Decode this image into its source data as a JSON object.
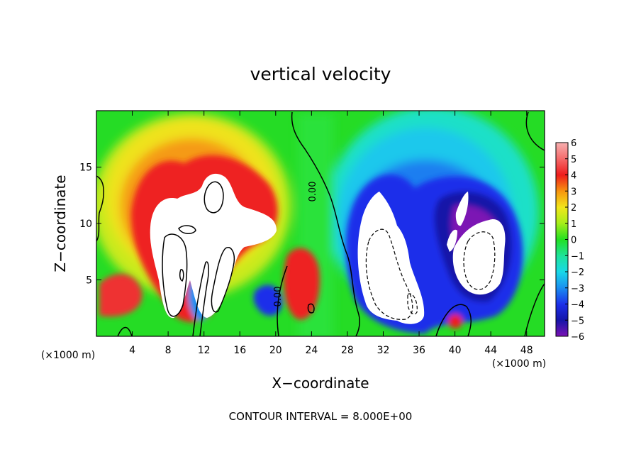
{
  "chart_data": {
    "type": "heatmap",
    "title": "vertical velocity",
    "xlabel": "X−coordinate",
    "ylabel": "Z−coordinate",
    "x_unit_left": "(×1000 m)",
    "x_unit_right": "(×1000 m)",
    "xlim": [
      0,
      50
    ],
    "ylim": [
      0,
      20
    ],
    "x_ticks": [
      4,
      8,
      12,
      16,
      20,
      24,
      28,
      32,
      36,
      40,
      44,
      48
    ],
    "x_tick_labels": [
      "4",
      "8",
      "12",
      "16",
      "20",
      "24",
      "28",
      "32",
      "36",
      "40",
      "44",
      "48"
    ],
    "y_ticks": [
      5,
      10,
      15
    ],
    "y_tick_labels": [
      "5",
      "10",
      "15"
    ],
    "colorbar": {
      "values": [
        6,
        5,
        4,
        3,
        2,
        1,
        0,
        -1,
        -2,
        -3,
        -4,
        -5,
        -6
      ],
      "labels": [
        "6",
        "5",
        "4",
        "3",
        "2",
        "1",
        "0",
        "−1",
        "−2",
        "−3",
        "−4",
        "−5",
        "−6"
      ],
      "range": [
        -6,
        6
      ]
    },
    "contour_labels": [
      "0.00",
      "0.00"
    ],
    "contour_interval_text": "CONTOUR INTERVAL = 8.000E+00",
    "features": [
      {
        "kind": "updraft",
        "x": 9,
        "z": 9,
        "sign": "+"
      },
      {
        "kind": "updraft",
        "x": 14,
        "z": 12,
        "sign": "+"
      },
      {
        "kind": "updraft",
        "x": 23,
        "z": 4,
        "sign": "+"
      },
      {
        "kind": "downdraft",
        "x": 33,
        "z": 7,
        "sign": "-"
      },
      {
        "kind": "downdraft",
        "x": 43,
        "z": 8,
        "sign": "-"
      },
      {
        "kind": "downdraft",
        "x": 19,
        "z": 3,
        "sign": "-"
      }
    ]
  },
  "colors": {
    "c_p6": "#f7b0b0",
    "c_p5": "#f56a6a",
    "c_p4": "#ee1c1c",
    "c_p3": "#f7950f",
    "c_p2": "#f2e61a",
    "c_p1": "#a5ee1a",
    "c_0": "#22e022",
    "c_m1": "#1ee39a",
    "c_m2": "#19d8e8",
    "c_m3": "#1a8ef0",
    "c_m4": "#1c2fea",
    "c_m5": "#1515a8",
    "c_m6": "#7c12b4",
    "background_green": "#22dd22",
    "saturated": "#ffffff"
  }
}
